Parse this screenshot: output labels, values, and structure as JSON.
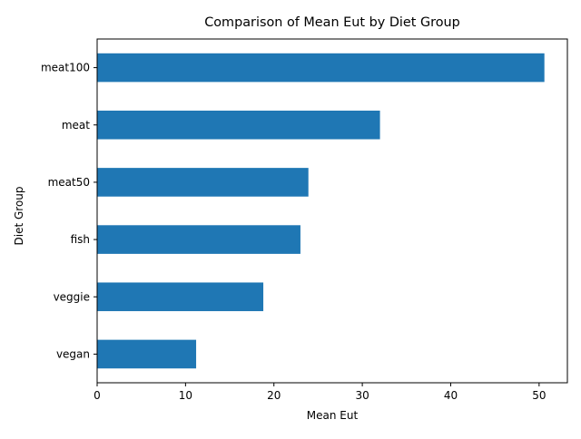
{
  "chart_data": {
    "type": "bar",
    "orientation": "horizontal",
    "title": "Comparison of Mean Eut by Diet Group",
    "xlabel": "Mean Eut",
    "ylabel": "Diet Group",
    "categories": [
      "vegan",
      "veggie",
      "fish",
      "meat50",
      "meat",
      "meat100"
    ],
    "values": [
      11.2,
      18.8,
      23.0,
      23.9,
      32.0,
      50.6
    ],
    "xlim": [
      0,
      53.2
    ],
    "xticks": [
      0,
      10,
      20,
      30,
      40,
      50
    ],
    "grid": false,
    "legend": "none",
    "bar_color": "#1f77b4"
  }
}
